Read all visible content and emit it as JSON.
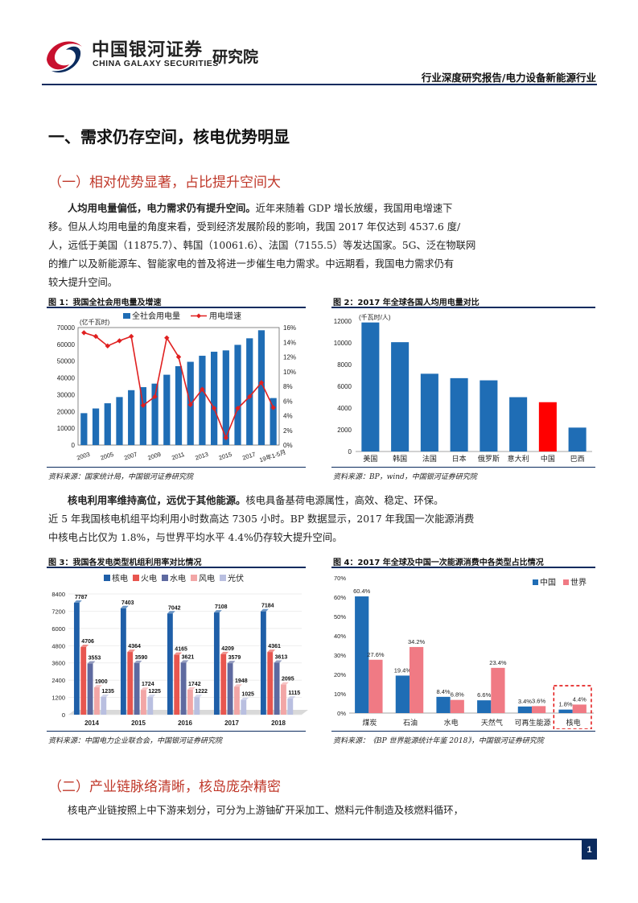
{
  "header": {
    "logo_cn": "中国银河证券",
    "logo_en": "CHINA GALAXY SECURITIES",
    "institute": "研究院",
    "report_type": "行业深度研究报告/电力设备新能源行业",
    "colors": {
      "brand_red": "#c8102e",
      "brand_navy": "#0b2b5e"
    }
  },
  "section1": {
    "title": "一、需求仍存空间，核电优势明显"
  },
  "sub1": {
    "title": "（一）相对优势显著，占比提升空间大"
  },
  "para1": {
    "bold": "人均用电量偏低，电力需求仍有提升空间。",
    "line1": "近年来随着 GDP 增长放缓，我国用电增速下",
    "line2": "移。但从人均用电量的角度来看，受到经济发展阶段的影响，我国 2017 年仅达到 4537.6 度/",
    "line3": "人，远低于美国（11875.7）、韩国（10061.6）、法国（7155.5）等发达国家。5G、泛在物联网",
    "line4": "的推广以及新能源车、智能家电的普及将进一步催生电力需求。中远期看，我国电力需求仍有",
    "line5": "较大提升空间。"
  },
  "fig1": {
    "title": "图 1：我国全社会用电量及增速",
    "source": "资料来源：国家统计局，中国银河证券研究院",
    "unit_label": "(亿千瓦时)"
  },
  "fig2": {
    "title": "图 2：2017 年全球各国人均用电量对比",
    "source": "资料来源：BP，wind，中国银河证券研究院",
    "unit_label": "(千瓦时/人)"
  },
  "para2": {
    "bold": "核电利用率维持高位，远优于其他能源。",
    "line1": "核电具备基荷电源属性，高效、稳定、环保。",
    "line2": "近 5 年我国核电机组平均利用小时数高达 7305 小时。BP 数据显示，2017 年我国一次能源消费",
    "line3": "中核电占比仅为 1.8%，与世界平均水平 4.4%仍存较大提升空间。"
  },
  "fig3": {
    "title": "图 3：我国各发电类型机组利用率对比情况",
    "source": "资料来源：中国电力企业联合会，中国银河证券研究院"
  },
  "fig4": {
    "title": "图 4：2017 年全球及中国一次能源消费中各类型占比情况",
    "source": "资料来源：《BP 世界能源统计年鉴 2018》，中国银河证券研究院"
  },
  "sub2": {
    "title": "（二）产业链脉络清晰，核岛庞杂精密"
  },
  "para3": {
    "line1": "核电产业链按照上中下游来划分，可分为上游铀矿开采加工、燃料元件制造及核燃料循环，"
  },
  "footer": {
    "page": "1"
  },
  "chart_data": [
    {
      "type": "bar",
      "id": "fig1",
      "categories": [
        "2003",
        "2004",
        "2005",
        "2006",
        "2007",
        "2008",
        "2009",
        "2010",
        "2011",
        "2012",
        "2013",
        "2014",
        "2015",
        "2016",
        "2017",
        "2018",
        "19年1-5月"
      ],
      "x_tick_labels": [
        "2003",
        "2005",
        "2007",
        "2009",
        "2011",
        "2013",
        "2015",
        "2017",
        "19年1-5月"
      ],
      "series": [
        {
          "name": "全社会用电量",
          "type": "bar",
          "axis": "left",
          "color": "#1f6db5",
          "values": [
            19000,
            21800,
            24900,
            28600,
            32700,
            34500,
            36600,
            41900,
            47000,
            49600,
            53200,
            55600,
            56400,
            59700,
            63600,
            68400,
            28000
          ]
        },
        {
          "name": "用电增速",
          "type": "line",
          "axis": "right",
          "color": "#e02020",
          "unit": "%",
          "values": [
            15.3,
            14.8,
            13.5,
            14.2,
            14.8,
            5.4,
            6.6,
            14.6,
            12.0,
            5.5,
            7.6,
            5.0,
            1.0,
            5.0,
            6.6,
            8.5,
            5.1
          ]
        }
      ],
      "ylim_left": [
        0,
        70000
      ],
      "yticks_left": [
        "0",
        "10000",
        "20000",
        "30000",
        "40000",
        "50000",
        "60000",
        "70000"
      ],
      "ylim_right": [
        0,
        16
      ],
      "yticks_right": [
        "0%",
        "2%",
        "4%",
        "6%",
        "8%",
        "10%",
        "12%",
        "14%",
        "16%"
      ],
      "legend": "top-center"
    },
    {
      "type": "bar",
      "id": "fig2",
      "categories": [
        "美国",
        "韩国",
        "法国",
        "日本",
        "俄罗斯",
        "意大利",
        "中国",
        "巴西"
      ],
      "values": [
        11876,
        10062,
        7156,
        6750,
        6550,
        5000,
        4538,
        2200
      ],
      "colors": [
        "#1f6db5",
        "#1f6db5",
        "#1f6db5",
        "#1f6db5",
        "#1f6db5",
        "#1f6db5",
        "#ff0000",
        "#1f6db5"
      ],
      "ylim": [
        0,
        12000
      ],
      "yticks": [
        "0",
        "2000",
        "4000",
        "6000",
        "8000",
        "10000",
        "12000"
      ]
    },
    {
      "type": "bar",
      "id": "fig3",
      "categories": [
        "2014",
        "2015",
        "2016",
        "2017",
        "2018"
      ],
      "series": [
        {
          "name": "核电",
          "color": "#1f5fa8",
          "values": [
            7787,
            7403,
            7042,
            7108,
            7184
          ]
        },
        {
          "name": "火电",
          "color": "#e8564f",
          "values": [
            4706,
            4364,
            4165,
            4209,
            4361
          ]
        },
        {
          "name": "水电",
          "color": "#5e6aa0",
          "values": [
            3553,
            3590,
            3621,
            3579,
            3613
          ]
        },
        {
          "name": "风电",
          "color": "#f2a6a6",
          "values": [
            1900,
            1724,
            1742,
            1948,
            2095
          ]
        },
        {
          "name": "光伏",
          "color": "#b9bfe0",
          "values": [
            1235,
            1225,
            1222,
            1025,
            1115
          ]
        }
      ],
      "ylim": [
        0,
        8400
      ],
      "yticks": [
        "0",
        "1200",
        "2400",
        "3600",
        "4800",
        "6000",
        "7200",
        "8400"
      ],
      "legend": "top-left"
    },
    {
      "type": "bar",
      "id": "fig4",
      "categories": [
        "煤炭",
        "石油",
        "水电",
        "天然气",
        "可再生能源",
        "核电"
      ],
      "series": [
        {
          "name": "中国",
          "color": "#1f6db5",
          "values": [
            60.4,
            19.4,
            8.4,
            6.6,
            3.4,
            1.8
          ],
          "labels": [
            "60.4%",
            "19.4%",
            "8.4%",
            "6.6%",
            "3.4%",
            "1.8%"
          ]
        },
        {
          "name": "世界",
          "color": "#f07a84",
          "values": [
            27.6,
            34.2,
            6.8,
            23.4,
            3.6,
            4.4
          ],
          "labels": [
            "27.6%",
            "34.2%",
            "6.8%",
            "23.4%",
            "3.6%",
            "4.4%"
          ]
        }
      ],
      "ylim": [
        0,
        70
      ],
      "yticks": [
        "0%",
        "10%",
        "20%",
        "30%",
        "40%",
        "50%",
        "60%",
        "70%"
      ],
      "legend": "top-right",
      "highlight_category": "核电"
    }
  ]
}
